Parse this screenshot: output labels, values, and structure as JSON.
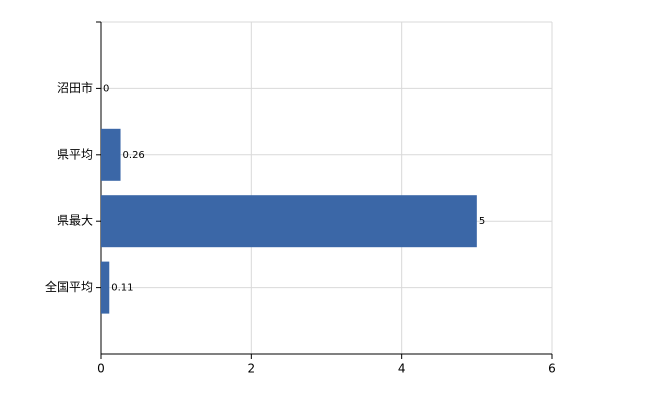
{
  "chart_data": {
    "type": "bar",
    "orientation": "horizontal",
    "categories": [
      "沼田市",
      "県平均",
      "県最大",
      "全国平均"
    ],
    "values": [
      0,
      0.26,
      5,
      0.11
    ],
    "color": "#3b67a7",
    "xlim": [
      0,
      6
    ],
    "xticks": [
      0,
      2,
      4,
      6
    ],
    "grid": true
  }
}
